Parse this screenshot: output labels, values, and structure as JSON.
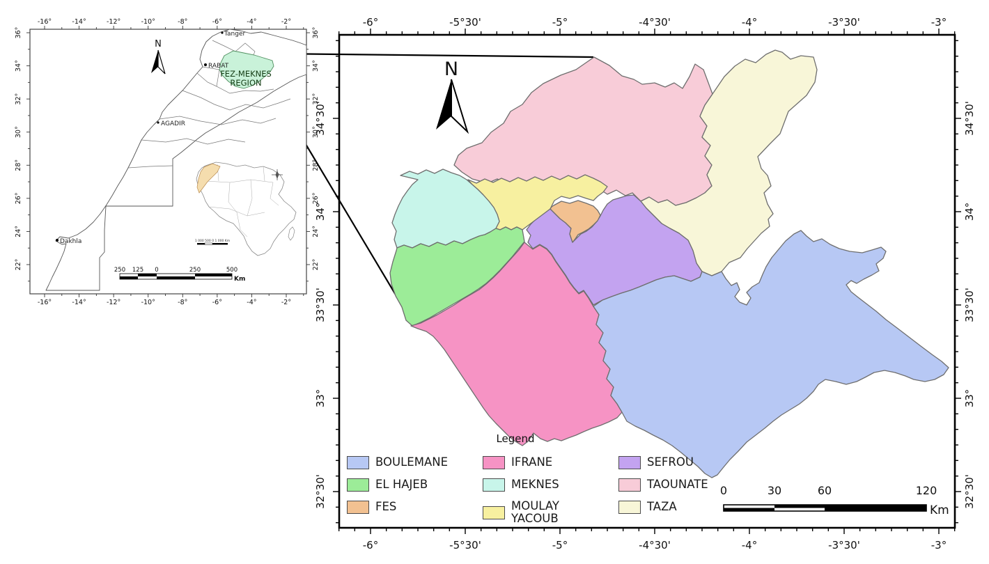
{
  "inset": {
    "x_axis": [
      "-16°",
      "-14°",
      "-12°",
      "-10°",
      "-8°",
      "-6°",
      "-4°",
      "-2°"
    ],
    "y_axis": [
      "36°",
      "34°",
      "32°",
      "30°",
      "28°",
      "26°",
      "24°",
      "22°"
    ],
    "north_label": "N",
    "cities": {
      "tanger": "Tanger",
      "rabat": "RABAT",
      "agadir": "AGADIR",
      "dakhla": "Dakhla"
    },
    "region_label_line1": "FEZ-MEKNES",
    "region_label_line2": "REGION",
    "region_fill": "#c9f2d9",
    "scalebar": {
      "labels": [
        "250",
        "125",
        "0",
        "250",
        "500"
      ],
      "unit": "Km"
    },
    "africa": {
      "morocco_fill": "#f5ddae",
      "scalebar_text": "1 000 500 0 1 000 Km"
    }
  },
  "main_map": {
    "x_axis": [
      "-6°",
      "-5°30'",
      "-5°",
      "-4°30'",
      "-4°",
      "-3°30'",
      "-3°"
    ],
    "y_axis": [
      "34°30'",
      "34°",
      "33°30'",
      "33°",
      "32°30'"
    ],
    "north_label": "N",
    "legend": {
      "title": "Legend",
      "items": [
        {
          "name": "BOULEMANE",
          "color": "#b7c8f4"
        },
        {
          "name": "EL HAJEB",
          "color": "#9cec98"
        },
        {
          "name": "FES",
          "color": "#f2c191"
        },
        {
          "name": "IFRANE",
          "color": "#f693c4"
        },
        {
          "name": "MEKNES",
          "color": "#c8f5ea"
        },
        {
          "name": "MOULAY YACOUB",
          "color": "#f7f0a0"
        },
        {
          "name": "SEFROU",
          "color": "#c3a3f0"
        },
        {
          "name": "TAOUNATE",
          "color": "#f8ccd8"
        },
        {
          "name": "TAZA",
          "color": "#f8f6d8"
        }
      ]
    },
    "scalebar": {
      "labels": [
        "0",
        "30",
        "60",
        "120"
      ],
      "unit": "Km"
    },
    "border_color": "#6e6e6e"
  }
}
